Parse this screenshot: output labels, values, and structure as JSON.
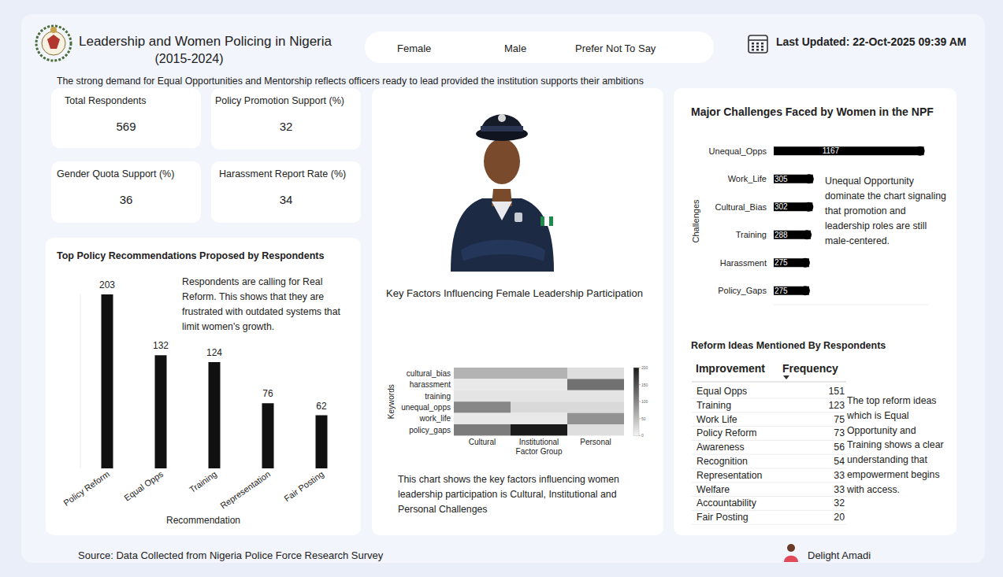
{
  "header": {
    "title": "Leadership and Women Policing in Nigeria",
    "period": "(2015-2024)",
    "filters": [
      "Female",
      "Male",
      "Prefer Not To Say"
    ],
    "last_updated": "Last Updated: 22-Oct-2025 09:39 AM",
    "subtitle": "The strong demand for Equal Opportunities and Mentorship reflects officers ready to lead provided the institution supports their ambitions"
  },
  "kpis": [
    {
      "label": "Total Respondents",
      "value": 569
    },
    {
      "label": "Policy Promotion Support (%)",
      "value": 32
    },
    {
      "label": "Gender Quota Support (%)",
      "value": 36
    },
    {
      "label": "Harassment Report Rate (%)",
      "value": 34
    }
  ],
  "chart_data": [
    {
      "type": "bar",
      "title": "Top Policy Recommendations Proposed by Respondents",
      "x_label": "Recommendation",
      "categories": [
        "Policy Reform",
        "Equal Opps",
        "Training",
        "Representation",
        "Fair Posting"
      ],
      "values": [
        203,
        132,
        124,
        76,
        62
      ],
      "color": "#111111",
      "ylim": [
        0,
        203
      ],
      "data_labels": true,
      "tick_labels": "x",
      "annotation": "Respondents are calling for Real Reform. This shows that they are frustrated with outdated systems that limit women's growth."
    },
    {
      "type": "heatmap",
      "title": "Key Factors Influencing Female Leadership Participation",
      "x_label": "Factor Group",
      "y_label": "Keywords",
      "categories": [
        "Cultural",
        "Institutional",
        "Personal"
      ],
      "rows": [
        "cultural_bias",
        "harassment",
        "training",
        "unequal_opps",
        "work_life",
        "policy_gaps"
      ],
      "cells": [
        [
          60,
          60,
          20
        ],
        [
          10,
          10,
          120
        ],
        [
          15,
          15,
          15
        ],
        [
          100,
          25,
          25
        ],
        [
          10,
          10,
          90
        ],
        [
          110,
          200,
          20
        ]
      ],
      "colorbar": {
        "range": [
          0,
          200
        ],
        "ticks": [
          0,
          50,
          100,
          150,
          200
        ]
      },
      "color": "#1a1a1a",
      "annotation": "This chart shows the key factors influencing women leadership participation is Cultural, Institutional and Personal Challenges"
    },
    {
      "type": "bar",
      "orientation": "horizontal",
      "title": "Major Challenges Faced by Women in the NPF",
      "y_label": "Challenges",
      "categories": [
        "Unequal_Opps",
        "Work_Life",
        "Cultural_Bias",
        "Training",
        "Harassment",
        "Policy_Gaps"
      ],
      "values": [
        1167,
        305,
        302,
        288,
        275,
        275
      ],
      "color": "#000000",
      "xlim": [
        0,
        1200
      ],
      "data_labels": true,
      "tick_labels": "y",
      "annotation": "Unequal Opportunity dominate the chart signaling that promotion and leadership roles are still male-centered."
    }
  ],
  "table": {
    "title": "Reform Ideas Mentioned By Respondents",
    "columns": [
      "Improvement",
      "Frequency"
    ],
    "rows": [
      [
        "Equal Opps",
        151
      ],
      [
        "Training",
        123
      ],
      [
        "Work Life",
        75
      ],
      [
        "Policy Reform",
        73
      ],
      [
        "Awareness",
        56
      ],
      [
        "Recognition",
        54
      ],
      [
        "Representation",
        33
      ],
      [
        "Welfare",
        33
      ],
      [
        "Accountability",
        32
      ],
      [
        "Fair Posting",
        20
      ]
    ],
    "annotation": "The top reform ideas which is Equal Opportunity and Training shows a clear understanding that empowerment begins with access."
  },
  "footer": {
    "source": "Source:  Data Collected from Nigeria Police Force Research Survey",
    "author": "Delight Amadi"
  }
}
